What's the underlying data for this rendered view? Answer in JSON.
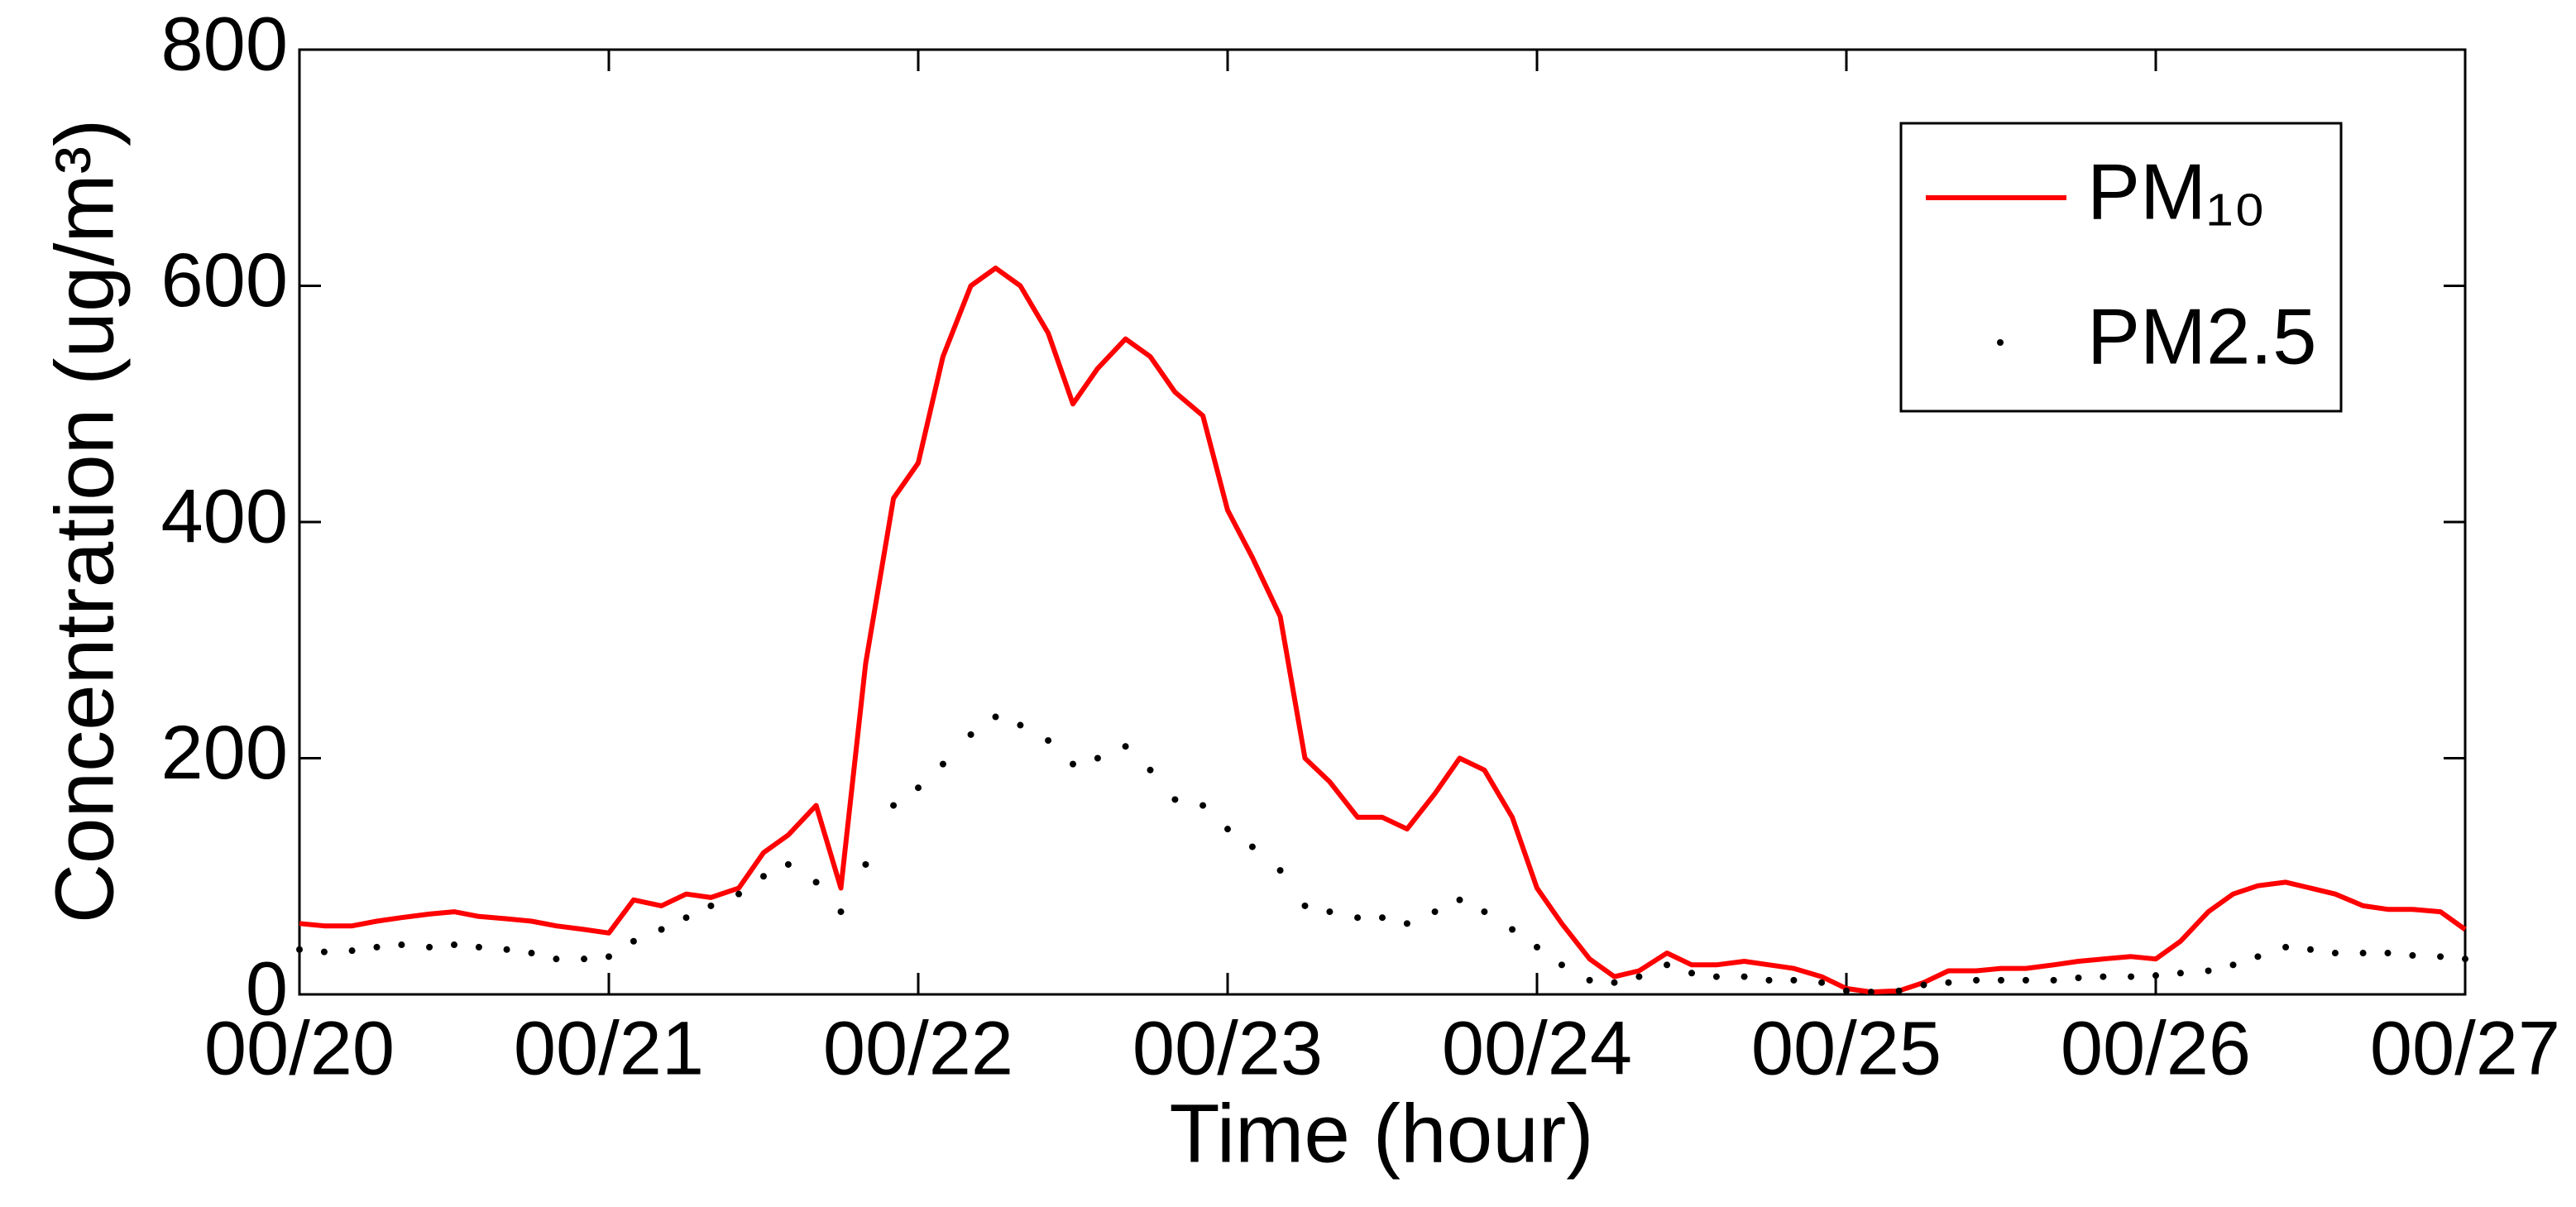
{
  "chart_data": {
    "type": "line",
    "x_label": "Time (hour)",
    "y_label": "Concentration (ug/m³)",
    "x": [
      20,
      20.08,
      20.17,
      20.25,
      20.33,
      20.42,
      20.5,
      20.58,
      20.67,
      20.75,
      20.83,
      20.92,
      21,
      21.08,
      21.17,
      21.25,
      21.33,
      21.42,
      21.5,
      21.58,
      21.67,
      21.75,
      21.83,
      21.92,
      22,
      22.08,
      22.17,
      22.25,
      22.33,
      22.42,
      22.5,
      22.58,
      22.67,
      22.75,
      22.83,
      22.92,
      23,
      23.08,
      23.17,
      23.25,
      23.33,
      23.42,
      23.5,
      23.58,
      23.67,
      23.75,
      23.83,
      23.92,
      24,
      24.08,
      24.17,
      24.25,
      24.33,
      24.42,
      24.5,
      24.58,
      24.67,
      24.75,
      24.83,
      24.92,
      25,
      25.08,
      25.17,
      25.25,
      25.33,
      25.42,
      25.5,
      25.58,
      25.67,
      25.75,
      25.83,
      25.92,
      26,
      26.08,
      26.17,
      26.25,
      26.33,
      26.42,
      26.5,
      26.58,
      26.67,
      26.75,
      26.83,
      26.92,
      27
    ],
    "series": [
      {
        "name": "PM₁₀",
        "color": "#ff0000",
        "style": "line",
        "values": [
          60,
          58,
          58,
          62,
          65,
          68,
          70,
          66,
          64,
          62,
          58,
          55,
          52,
          80,
          75,
          85,
          82,
          90,
          120,
          135,
          160,
          90,
          280,
          420,
          450,
          540,
          600,
          615,
          600,
          560,
          500,
          530,
          555,
          540,
          510,
          490,
          410,
          370,
          320,
          200,
          180,
          150,
          150,
          140,
          170,
          200,
          190,
          150,
          90,
          60,
          30,
          15,
          20,
          35,
          25,
          25,
          28,
          25,
          22,
          15,
          5,
          2,
          3,
          10,
          20,
          20,
          22,
          22,
          25,
          28,
          30,
          32,
          30,
          45,
          70,
          85,
          92,
          95,
          90,
          85,
          75,
          72,
          72,
          70,
          55
        ]
      },
      {
        "name": "PM2.5",
        "color": "#000000",
        "style": "dots",
        "values": [
          38,
          36,
          37,
          40,
          42,
          40,
          42,
          40,
          38,
          35,
          30,
          30,
          32,
          45,
          55,
          65,
          75,
          85,
          100,
          110,
          95,
          70,
          110,
          160,
          175,
          195,
          220,
          235,
          228,
          215,
          195,
          200,
          210,
          190,
          165,
          160,
          140,
          125,
          105,
          75,
          70,
          65,
          65,
          60,
          70,
          80,
          70,
          55,
          40,
          25,
          12,
          10,
          15,
          25,
          18,
          15,
          15,
          12,
          12,
          10,
          3,
          2,
          3,
          8,
          10,
          12,
          12,
          12,
          12,
          14,
          15,
          15,
          16,
          18,
          20,
          25,
          32,
          40,
          38,
          35,
          35,
          35,
          33,
          32,
          30
        ]
      }
    ],
    "xlim": [
      20,
      27
    ],
    "xticks": [
      {
        "value": 20,
        "label": "00/20"
      },
      {
        "value": 21,
        "label": "00/21"
      },
      {
        "value": 22,
        "label": "00/22"
      },
      {
        "value": 23,
        "label": "00/23"
      },
      {
        "value": 24,
        "label": "00/24"
      },
      {
        "value": 25,
        "label": "00/25"
      },
      {
        "value": 26,
        "label": "00/26"
      },
      {
        "value": 27,
        "label": "00/27"
      }
    ],
    "ylim": [
      0,
      800
    ],
    "yticks": [
      0,
      200,
      400,
      600,
      800
    ],
    "legend": "upper right"
  }
}
